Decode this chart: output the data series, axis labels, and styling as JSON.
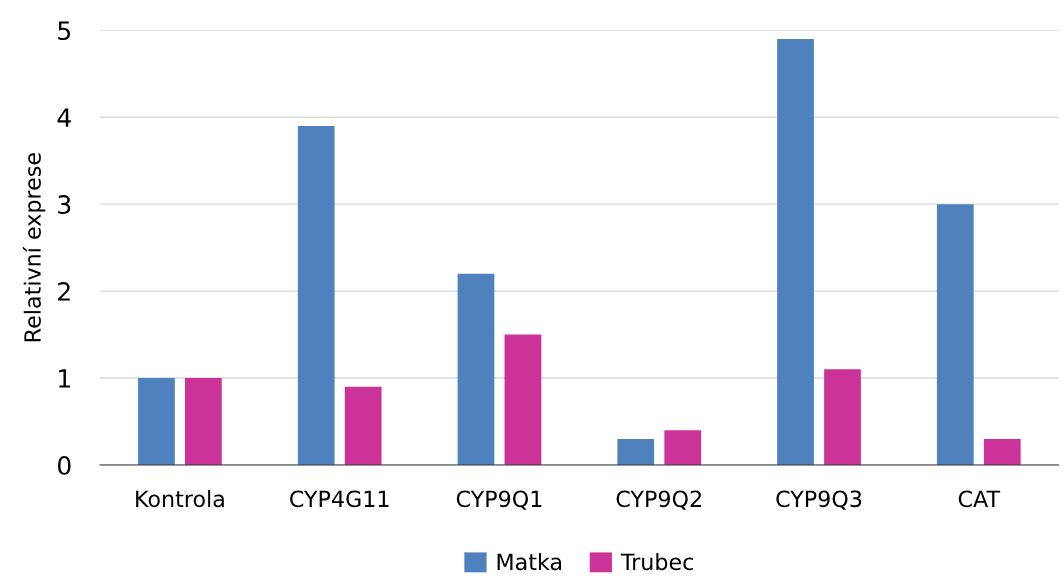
{
  "chart_data": {
    "type": "bar",
    "ylabel": "Relativní exprese",
    "categories": [
      "Kontrola",
      "CYP4G11",
      "CYP9Q1",
      "CYP9Q2",
      "CYP9Q3",
      "CAT"
    ],
    "series": [
      {
        "name": "Matka",
        "color": "#4f81bd",
        "values": [
          1.0,
          3.9,
          2.2,
          0.3,
          4.9,
          3.0
        ]
      },
      {
        "name": "Trubec",
        "color": "#cc3399",
        "values": [
          1.0,
          0.9,
          1.5,
          0.4,
          1.1,
          0.3
        ]
      }
    ],
    "ylim": [
      0,
      5
    ],
    "yticks": [
      0,
      1,
      2,
      3,
      4,
      5
    ],
    "grid": "y",
    "legend": "bottom"
  }
}
